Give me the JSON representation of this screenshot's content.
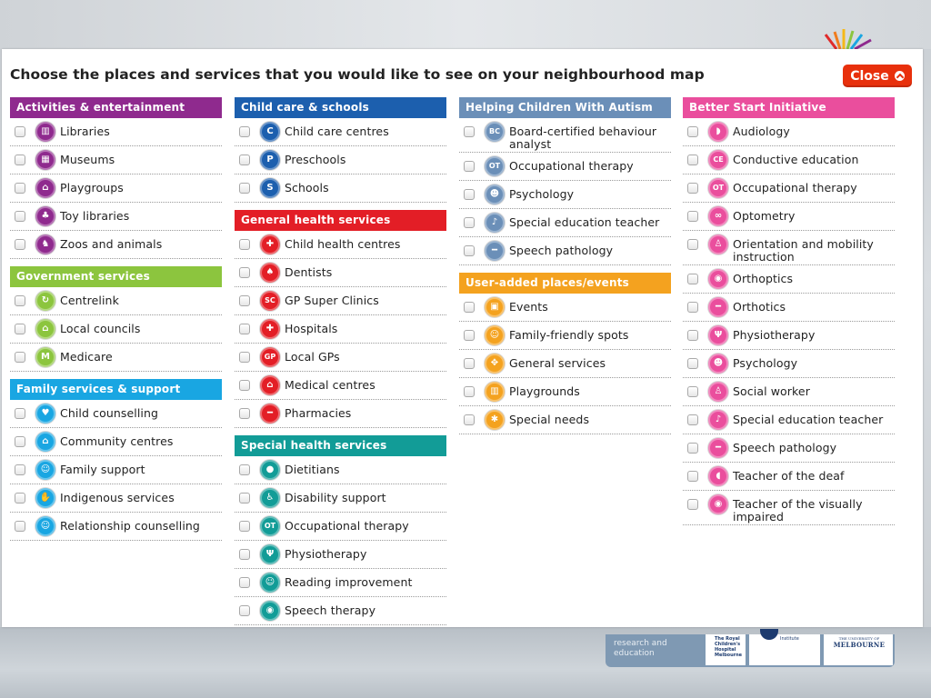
{
  "page": {
    "title": "Choose the places and services that you would like to see on your neighbourhood map",
    "close_label": "Close"
  },
  "footer": {
    "text": "research and education",
    "rch": "The Royal Children's Hospital Melbourne",
    "mcri": "Institute",
    "uom_small": "THE UNIVERSITY OF",
    "uom_big": "MELBOURNE"
  },
  "colors": {
    "activities": "#8f2a8e",
    "childcare": "#1c5fae",
    "general_health": "#e31e26",
    "special_health": "#129c97",
    "government": "#8cc53e",
    "family": "#19a6e2",
    "autism": "#6b8fb8",
    "user_added": "#f4a21f",
    "better_start": "#ea4e9d",
    "close": "#e8300c"
  },
  "columns": [
    {
      "groups": [
        {
          "name": "Activities & entertainment",
          "color": "#8f2a8e",
          "items": [
            {
              "label": "Libraries",
              "icon": "books-icon",
              "glyph": "▥"
            },
            {
              "label": "Museums",
              "icon": "museum-icon",
              "glyph": "▦"
            },
            {
              "label": "Playgroups",
              "icon": "playgroup-icon",
              "glyph": "⌂"
            },
            {
              "label": "Toy libraries",
              "icon": "toy-icon",
              "glyph": "♣"
            },
            {
              "label": "Zoos and animals",
              "icon": "animal-icon",
              "glyph": "♞"
            }
          ]
        },
        {
          "name": "Government services",
          "color": "#8cc53e",
          "items": [
            {
              "label": "Centrelink",
              "icon": "centrelink-icon",
              "glyph": "↻"
            },
            {
              "label": "Local councils",
              "icon": "council-icon",
              "glyph": "⌂"
            },
            {
              "label": "Medicare",
              "icon": "medicare-icon",
              "glyph": "M"
            }
          ]
        },
        {
          "name": "Family services & support",
          "color": "#19a6e2",
          "items": [
            {
              "label": "Child counselling",
              "icon": "heart-icon",
              "glyph": "♥"
            },
            {
              "label": "Community centres",
              "icon": "home-icon",
              "glyph": "⌂"
            },
            {
              "label": "Family support",
              "icon": "family-icon",
              "glyph": "☺"
            },
            {
              "label": "Indigenous services",
              "icon": "hand-icon",
              "glyph": "✋"
            },
            {
              "label": "Relationship counselling",
              "icon": "people-icon",
              "glyph": "☺"
            }
          ]
        }
      ]
    },
    {
      "groups": [
        {
          "name": "Child care & schools",
          "color": "#1c5fae",
          "items": [
            {
              "label": "Child care centres",
              "icon": "c-letter-icon",
              "glyph": "C"
            },
            {
              "label": "Preschools",
              "icon": "p-letter-icon",
              "glyph": "P"
            },
            {
              "label": "Schools",
              "icon": "s-letter-icon",
              "glyph": "S"
            }
          ]
        },
        {
          "name": "General health services",
          "color": "#e31e26",
          "items": [
            {
              "label": "Child health centres",
              "icon": "child-health-icon",
              "glyph": "✚"
            },
            {
              "label": "Dentists",
              "icon": "tooth-icon",
              "glyph": "♠"
            },
            {
              "label": "GP Super Clinics",
              "icon": "sc-icon",
              "glyph": "SC"
            },
            {
              "label": "Hospitals",
              "icon": "cross-icon",
              "glyph": "✚"
            },
            {
              "label": "Local GPs",
              "icon": "gp-icon",
              "glyph": "GP"
            },
            {
              "label": "Medical centres",
              "icon": "medical-centre-icon",
              "glyph": "⌂"
            },
            {
              "label": "Pharmacies",
              "icon": "pill-icon",
              "glyph": "━"
            }
          ]
        },
        {
          "name": "Special health services",
          "color": "#129c97",
          "items": [
            {
              "label": "Dietitians",
              "icon": "apple-icon",
              "glyph": "●"
            },
            {
              "label": "Disability support",
              "icon": "disability-icon",
              "glyph": "♿"
            },
            {
              "label": "Occupational therapy",
              "icon": "ot-icon",
              "glyph": "OT"
            },
            {
              "label": "Physiotherapy",
              "icon": "physio-icon",
              "glyph": "Ψ"
            },
            {
              "label": "Reading improvement",
              "icon": "reading-icon",
              "glyph": "☺"
            },
            {
              "label": "Speech therapy",
              "icon": "speech-bubble-icon",
              "glyph": "◉"
            }
          ]
        }
      ]
    },
    {
      "groups": [
        {
          "name": "Helping Children With Autism",
          "color": "#6b8fb8",
          "items": [
            {
              "label": "Board-certified behaviour analyst",
              "icon": "bcba-icon",
              "glyph": "BC",
              "tall": true
            },
            {
              "label": "Occupational therapy",
              "icon": "ot-icon",
              "glyph": "OT"
            },
            {
              "label": "Psychology",
              "icon": "psychology-icon",
              "glyph": "☻"
            },
            {
              "label": "Special education teacher",
              "icon": "teacher-icon",
              "glyph": "♪"
            },
            {
              "label": "Speech pathology",
              "icon": "speech-icon",
              "glyph": "━"
            }
          ]
        },
        {
          "name": "User-added places/events",
          "color": "#f4a21f",
          "items": [
            {
              "label": "Events",
              "icon": "event-icon",
              "glyph": "▣"
            },
            {
              "label": "Family-friendly spots",
              "icon": "smile-icon",
              "glyph": "☺"
            },
            {
              "label": "General services",
              "icon": "grid-icon",
              "glyph": "✥"
            },
            {
              "label": "Playgrounds",
              "icon": "playground-icon",
              "glyph": "▥"
            },
            {
              "label": "Special needs",
              "icon": "star-icon",
              "glyph": "✱"
            }
          ]
        }
      ]
    },
    {
      "groups": [
        {
          "name": "Better Start Initiative",
          "color": "#ea4e9d",
          "items": [
            {
              "label": "Audiology",
              "icon": "hearing-icon",
              "glyph": "◗"
            },
            {
              "label": "Conductive education",
              "icon": "ce-icon",
              "glyph": "CE"
            },
            {
              "label": "Occupational therapy",
              "icon": "ot-icon",
              "glyph": "OT"
            },
            {
              "label": "Optometry",
              "icon": "glasses-icon",
              "glyph": "∞"
            },
            {
              "label": "Orientation and mobility instruction",
              "icon": "walking-icon",
              "glyph": "♙",
              "tall": true
            },
            {
              "label": "Orthoptics",
              "icon": "eye-icon",
              "glyph": "◉"
            },
            {
              "label": "Orthotics",
              "icon": "orthotics-icon",
              "glyph": "━"
            },
            {
              "label": "Physiotherapy",
              "icon": "physio-icon",
              "glyph": "Ψ"
            },
            {
              "label": "Psychology",
              "icon": "psychology-icon",
              "glyph": "☻"
            },
            {
              "label": "Social worker",
              "icon": "social-worker-icon",
              "glyph": "♙"
            },
            {
              "label": "Special education teacher",
              "icon": "teacher-icon",
              "glyph": "♪"
            },
            {
              "label": "Speech pathology",
              "icon": "speech-icon",
              "glyph": "━"
            },
            {
              "label": "Teacher of the deaf",
              "icon": "ear-icon",
              "glyph": "◖"
            },
            {
              "label": "Teacher of the visually impaired",
              "icon": "eye-icon",
              "glyph": "◉",
              "tall": true
            }
          ]
        }
      ]
    }
  ]
}
